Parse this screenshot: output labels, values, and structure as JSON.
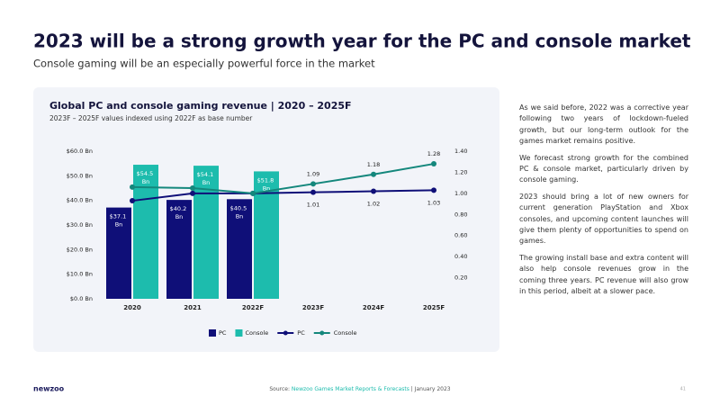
{
  "slide": {
    "title": "2023 will be a strong growth year for the PC and console market",
    "subtitle": "Console gaming will be an especially powerful force in the market",
    "paragraphs": [
      "As we said before, 2022 was a corrective year following two years of lockdown-fueled growth, but our long-term outlook for the games market remains positive.",
      "We forecast strong growth for the combined PC & console market, particularly driven by console gaming.",
      "2023 should bring a lot of new owners for current generation PlayStation and Xbox consoles, and upcoming content launches will give them plenty of opportunities to spend on games.",
      "The growing install base and extra content will also help console revenues grow in the coming three years. PC revenue will also grow in this period, albeit at a slower pace."
    ],
    "logo": "newzoo",
    "source_prefix": "Source: ",
    "source_link": "Newzoo Games Market Reports & Forecasts",
    "source_suffix": " | January 2023",
    "page": "41"
  },
  "chart_data": {
    "type": "bar",
    "title": "Global PC and console gaming revenue | 2020 – 2025F",
    "subtitle": "2023F – 2025F values indexed using 2022F as base number",
    "categories": [
      "2020",
      "2021",
      "2022F",
      "2023F",
      "2024F",
      "2025F"
    ],
    "series": [
      {
        "name": "PC",
        "type": "bar",
        "color": "#0f0f78",
        "values": [
          37.1,
          40.2,
          40.5,
          null,
          null,
          null
        ],
        "value_labels": [
          "$37.1 Bn",
          "$40.2 Bn",
          "$40.5 Bn",
          null,
          null,
          null
        ]
      },
      {
        "name": "Console",
        "type": "bar",
        "color": "#1dbcad",
        "values": [
          54.5,
          54.1,
          51.8,
          null,
          null,
          null
        ],
        "value_labels": [
          "$54.5 Bn",
          "$54.1 Bn",
          "$51.8 Bn",
          null,
          null,
          null
        ]
      },
      {
        "name": "PC",
        "type": "line",
        "axis": "y2",
        "color": "#0f0f78",
        "values": [
          0.93,
          1.0,
          1.0,
          1.01,
          1.02,
          1.03
        ],
        "value_labels": [
          null,
          null,
          null,
          "1.01",
          "1.02",
          "1.03"
        ]
      },
      {
        "name": "Console",
        "type": "line",
        "axis": "y2",
        "color": "#14877c",
        "values": [
          1.06,
          1.05,
          1.0,
          1.09,
          1.18,
          1.28
        ],
        "value_labels": [
          null,
          null,
          null,
          "1.09",
          "1.18",
          "1.28"
        ]
      }
    ],
    "ylim": [
      0,
      60
    ],
    "yticks": [
      {
        "value": 0,
        "label": "$0.0 Bn"
      },
      {
        "value": 10,
        "label": "$10.0 Bn"
      },
      {
        "value": 20,
        "label": "$20.0 Bn"
      },
      {
        "value": 30,
        "label": "$30.0 Bn"
      },
      {
        "value": 40,
        "label": "$40.0 Bn"
      },
      {
        "value": 50,
        "label": "$50.0 Bn"
      },
      {
        "value": 60,
        "label": "$60.0 Bn"
      }
    ],
    "y2lim": [
      0,
      1.4
    ],
    "y2ticks": [
      {
        "value": 0.2,
        "label": "0.20"
      },
      {
        "value": 0.4,
        "label": "0.40"
      },
      {
        "value": 0.6,
        "label": "0.60"
      },
      {
        "value": 0.8,
        "label": "0.80"
      },
      {
        "value": 1.0,
        "label": "1.00"
      },
      {
        "value": 1.2,
        "label": "1.20"
      },
      {
        "value": 1.4,
        "label": "1.40"
      }
    ],
    "legend": "bottom"
  }
}
